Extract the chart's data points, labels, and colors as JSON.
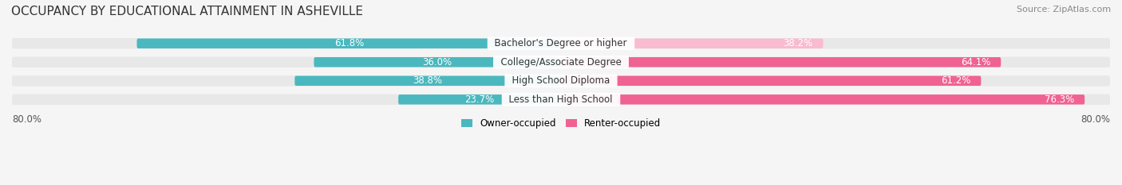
{
  "title": "OCCUPANCY BY EDUCATIONAL ATTAINMENT IN ASHEVILLE",
  "source": "Source: ZipAtlas.com",
  "categories": [
    "Less than High School",
    "High School Diploma",
    "College/Associate Degree",
    "Bachelor's Degree or higher"
  ],
  "owner_values": [
    23.7,
    38.8,
    36.0,
    61.8
  ],
  "renter_values": [
    76.3,
    61.2,
    64.1,
    38.2
  ],
  "owner_color": "#4ab8be",
  "renter_color_strong": "#f06292",
  "renter_color_light": "#f8bbd0",
  "owner_label": "Owner-occupied",
  "renter_label": "Renter-occupied",
  "axis_left_label": "80.0%",
  "axis_right_label": "80.0%",
  "bar_height": 0.55,
  "background_color": "#f5f5f5",
  "bar_bg_color": "#e8e8e8",
  "title_fontsize": 11,
  "label_fontsize": 8.5,
  "source_fontsize": 8
}
